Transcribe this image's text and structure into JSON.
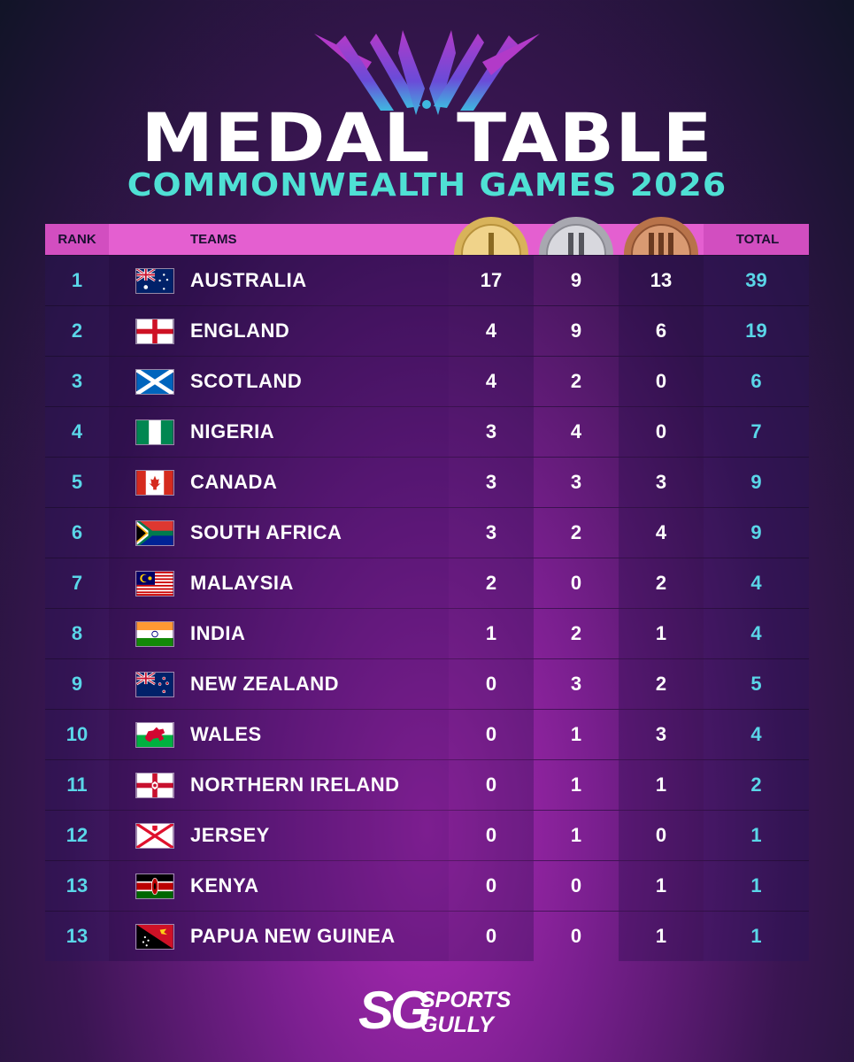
{
  "header": {
    "title": "MEDAL TABLE",
    "subtitle": "COMMONWEALTH GAMES 2026"
  },
  "columns": {
    "rank": "RANK",
    "teams": "TEAMS",
    "total": "TOTAL",
    "gold_icon": "gold-medal-icon",
    "silver_icon": "silver-medal-icon",
    "bronze_icon": "bronze-medal-icon"
  },
  "colors": {
    "accent_cyan": "#4fe0d4",
    "header_pink": "#e45fd0",
    "rank_text": "#5ad6e8"
  },
  "rows": [
    {
      "rank": "1",
      "team": "AUSTRALIA",
      "gold": "17",
      "silver": "9",
      "bronze": "13",
      "total": "39",
      "flag": "australia-flag-icon"
    },
    {
      "rank": "2",
      "team": "ENGLAND",
      "gold": "4",
      "silver": "9",
      "bronze": "6",
      "total": "19",
      "flag": "england-flag-icon"
    },
    {
      "rank": "3",
      "team": "SCOTLAND",
      "gold": "4",
      "silver": "2",
      "bronze": "0",
      "total": "6",
      "flag": "scotland-flag-icon"
    },
    {
      "rank": "4",
      "team": "NIGERIA",
      "gold": "3",
      "silver": "4",
      "bronze": "0",
      "total": "7",
      "flag": "nigeria-flag-icon"
    },
    {
      "rank": "5",
      "team": "CANADA",
      "gold": "3",
      "silver": "3",
      "bronze": "3",
      "total": "9",
      "flag": "canada-flag-icon"
    },
    {
      "rank": "6",
      "team": "SOUTH AFRICA",
      "gold": "3",
      "silver": "2",
      "bronze": "4",
      "total": "9",
      "flag": "south-africa-flag-icon"
    },
    {
      "rank": "7",
      "team": "MALAYSIA",
      "gold": "2",
      "silver": "0",
      "bronze": "2",
      "total": "4",
      "flag": "malaysia-flag-icon"
    },
    {
      "rank": "8",
      "team": "INDIA",
      "gold": "1",
      "silver": "2",
      "bronze": "1",
      "total": "4",
      "flag": "india-flag-icon"
    },
    {
      "rank": "9",
      "team": "NEW ZEALAND",
      "gold": "0",
      "silver": "3",
      "bronze": "2",
      "total": "5",
      "flag": "new-zealand-flag-icon"
    },
    {
      "rank": "10",
      "team": "WALES",
      "gold": "0",
      "silver": "1",
      "bronze": "3",
      "total": "4",
      "flag": "wales-flag-icon"
    },
    {
      "rank": "11",
      "team": "NORTHERN IRELAND",
      "gold": "0",
      "silver": "1",
      "bronze": "1",
      "total": "2",
      "flag": "northern-ireland-flag-icon"
    },
    {
      "rank": "12",
      "team": "JERSEY",
      "gold": "0",
      "silver": "1",
      "bronze": "0",
      "total": "1",
      "flag": "jersey-flag-icon"
    },
    {
      "rank": "13",
      "team": "KENYA",
      "gold": "0",
      "silver": "0",
      "bronze": "1",
      "total": "1",
      "flag": "kenya-flag-icon"
    },
    {
      "rank": "13",
      "team": "PAPUA NEW GUINEA",
      "gold": "0",
      "silver": "0",
      "bronze": "1",
      "total": "1",
      "flag": "papua-new-guinea-flag-icon"
    }
  ],
  "footer": {
    "logo_mark": "SG",
    "brand_line1": "SPORTS",
    "brand_line2": "GULLY"
  }
}
